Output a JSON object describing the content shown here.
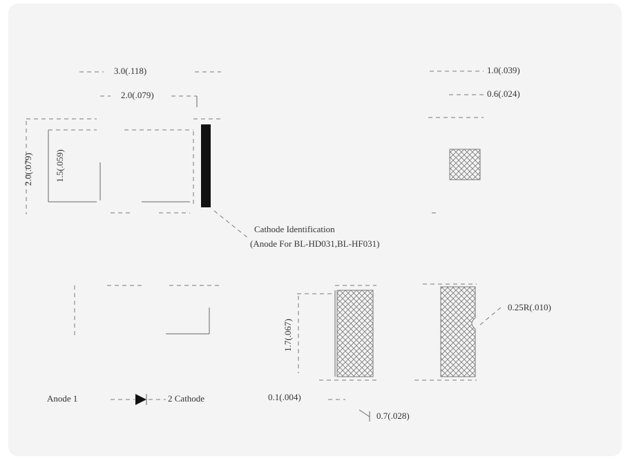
{
  "top_view": {
    "width_total": "3.0(.118)",
    "width_body": "2.0(.079)",
    "height_total": "2.0(.079)",
    "height_body": "1.5(.059)"
  },
  "side_view": {
    "thickness": "1.0(.039)",
    "lens": "0.6(.024)"
  },
  "cathode_note": {
    "line1": "Cathode Identification",
    "line2": "(Anode For BL-HD031,BL-HF031)"
  },
  "pads": {
    "height": "1.7(.067)",
    "gap": "0.1(.004)",
    "width": "0.7(.028)",
    "radius": "0.25R(.010)"
  },
  "polarity": {
    "anode": "Anode 1",
    "cathode": "2 Cathode"
  }
}
